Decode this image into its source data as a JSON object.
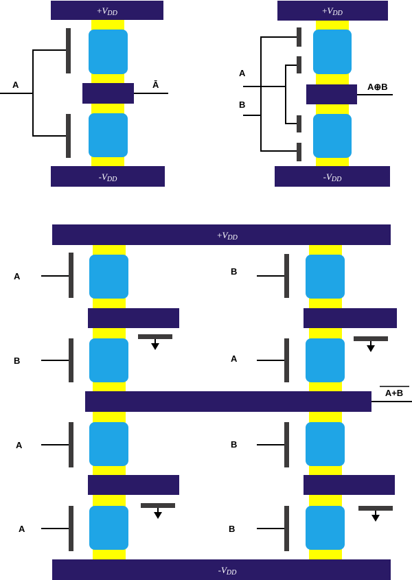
{
  "rails": {
    "vdd_pos_prefix": "+",
    "vdd_neg_prefix": "-",
    "vdd_symbol": "V",
    "vdd_sub": "DD"
  },
  "not_gate": {
    "input": "A",
    "output": "Ā"
  },
  "xor_gate": {
    "input_a": "A",
    "input_b": "B",
    "output": "A⊕B"
  },
  "nor_gate": {
    "inputs_left": [
      "A",
      "B",
      "A",
      "A"
    ],
    "inputs_right": [
      "B",
      "A",
      "B",
      "B"
    ],
    "output": "A+B"
  },
  "colors": {
    "rail": "#2a1a66",
    "channel": "#ffff00",
    "block": "#1fa5e6",
    "gate": "#3d3b3b"
  }
}
